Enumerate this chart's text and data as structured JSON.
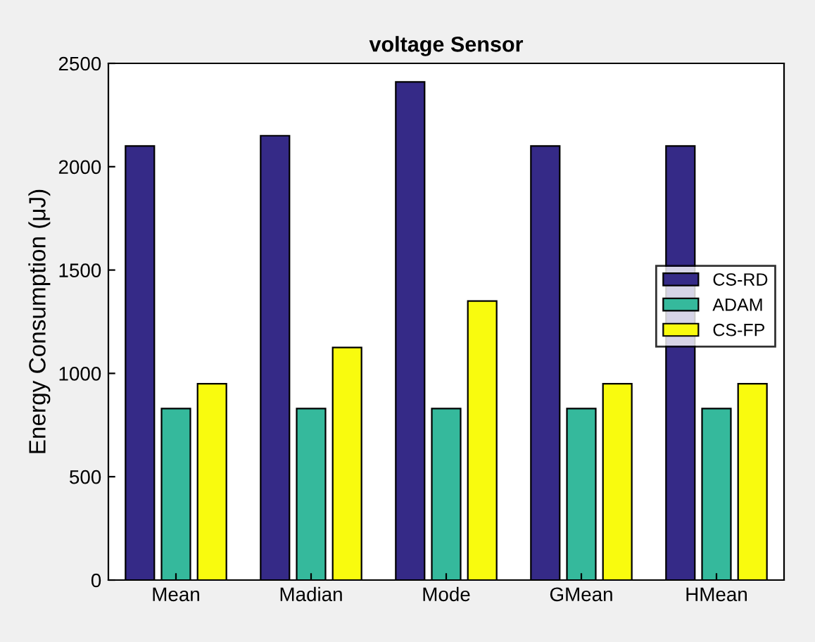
{
  "chart_data": {
    "type": "bar",
    "title": "voltage Sensor",
    "ylabel": "Energy Consumption (μJ)",
    "categories": [
      "Mean",
      "Madian",
      "Mode",
      "GMean",
      "HMean"
    ],
    "series": [
      {
        "name": "CS-RD",
        "color": "#352a87",
        "values": [
          2100,
          2150,
          2410,
          2100,
          2100
        ]
      },
      {
        "name": "ADAM",
        "color": "#35b99c",
        "values": [
          830,
          830,
          830,
          830,
          830
        ]
      },
      {
        "name": "CS-FP",
        "color": "#f9fb0e",
        "values": [
          950,
          1125,
          1350,
          950,
          950
        ]
      }
    ],
    "ylim": [
      0,
      2500
    ],
    "yticks": [
      0,
      500,
      1000,
      1500,
      2000,
      2500
    ],
    "grid": false,
    "legend": "center right"
  }
}
